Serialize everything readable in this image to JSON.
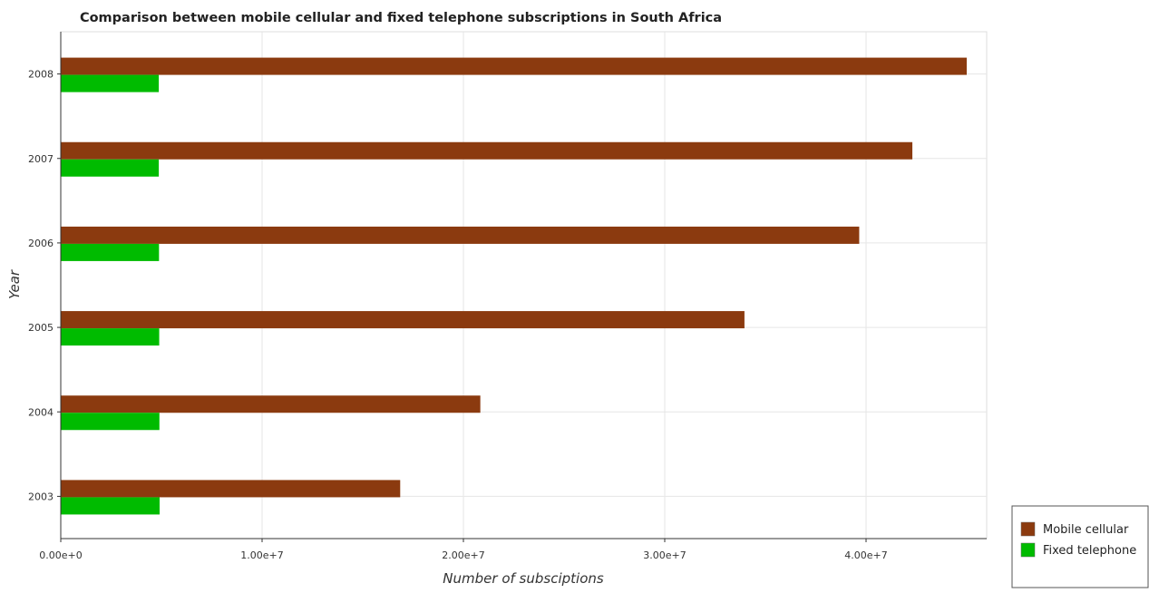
{
  "chart_data": {
    "type": "bar",
    "orientation": "horizontal",
    "title": "Comparison between mobile cellular and fixed telephone subscriptions in South Africa",
    "xlabel": "Number of subsciptions",
    "ylabel": "Year",
    "categories": [
      "2003",
      "2004",
      "2005",
      "2006",
      "2007",
      "2008"
    ],
    "series": [
      {
        "name": "Mobile cellular",
        "color": "#8b3a0f",
        "values": [
          16860000,
          20840000,
          33960000,
          39660000,
          42300000,
          45000000
        ]
      },
      {
        "name": "Fixed telephone",
        "color": "#00bb00",
        "values": [
          4910000,
          4900000,
          4890000,
          4880000,
          4870000,
          4870000
        ]
      }
    ],
    "xlim": [
      0,
      47000000
    ],
    "xticks": [
      {
        "value": 0,
        "label": "0.00e+0"
      },
      {
        "value": 10000000,
        "label": "1.00e+7"
      },
      {
        "value": 20000000,
        "label": "2.00e+7"
      },
      {
        "value": 30000000,
        "label": "3.00e+7"
      },
      {
        "value": 40000000,
        "label": "4.00e+7"
      }
    ],
    "grid": true,
    "legend_position": "bottom-right"
  }
}
